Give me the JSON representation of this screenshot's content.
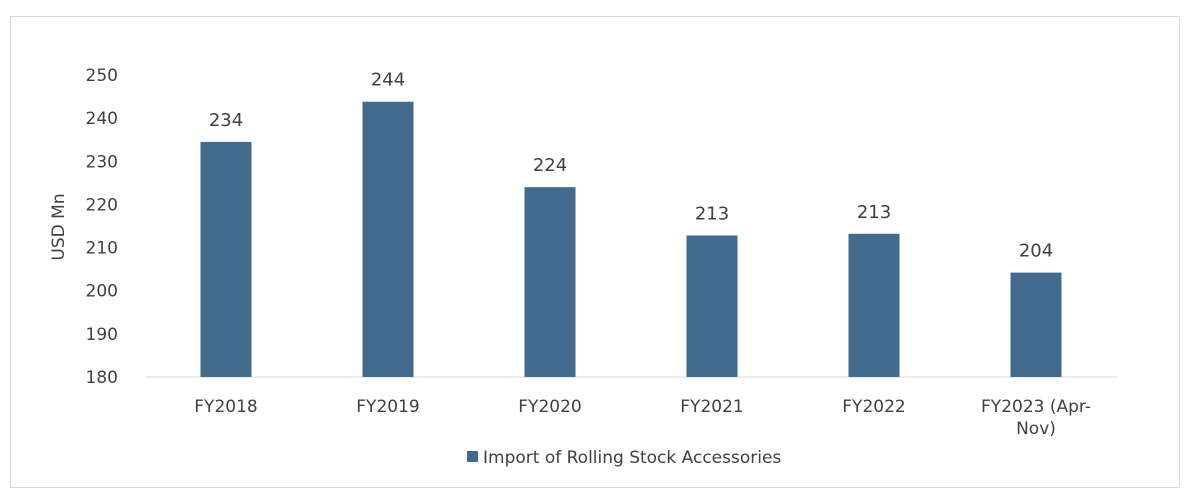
{
  "chart_data": {
    "type": "bar",
    "categories": [
      "FY2018",
      "FY2019",
      "FY2020",
      "FY2021",
      "FY2022",
      "FY2023 (Apr-Nov)"
    ],
    "category_lines": [
      [
        "FY2018"
      ],
      [
        "FY2019"
      ],
      [
        "FY2020"
      ],
      [
        "FY2021"
      ],
      [
        "FY2022"
      ],
      [
        "FY2023 (Apr-",
        "Nov)"
      ]
    ],
    "series": [
      {
        "name": "Import of Rolling Stock Accessories",
        "values": [
          234.5,
          243.8,
          224.0,
          212.8,
          213.2,
          204.2
        ]
      }
    ],
    "data_labels": [
      "234",
      "244",
      "224",
      "213",
      "213",
      "204"
    ],
    "ylabel": "USD Mn",
    "xlabel": "",
    "title": "",
    "ylim": [
      180,
      250
    ],
    "yticks": [
      180,
      190,
      200,
      210,
      220,
      230,
      240,
      250
    ],
    "grid": false,
    "legend": "bottom",
    "colors": {
      "bar": "#416A8D",
      "axis": "#d9d9d9",
      "text": "#404040"
    }
  }
}
